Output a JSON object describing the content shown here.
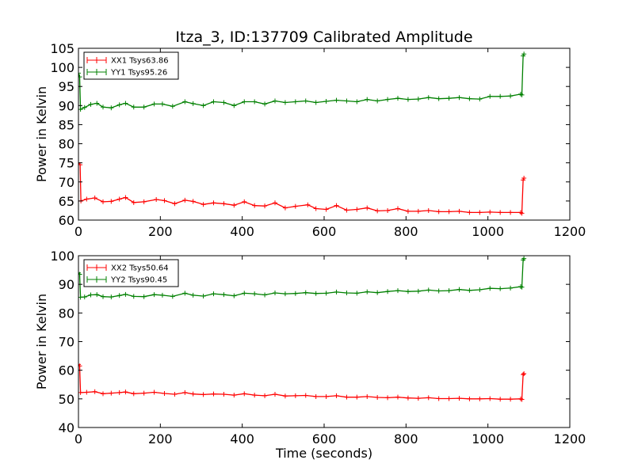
{
  "chart_data": {
    "type": "line",
    "title": "Itza_3, ID:137709 Calibrated Amplitude",
    "subplots": [
      {
        "ylabel": "Power in Kelvin",
        "xlabel": "",
        "xlim": [
          0,
          1200
        ],
        "ylim": [
          60,
          105
        ],
        "xticks": [
          0,
          200,
          400,
          600,
          800,
          1000,
          1200
        ],
        "yticks": [
          60,
          65,
          70,
          75,
          80,
          85,
          90,
          95,
          100,
          105
        ],
        "legend_position": "upper-left",
        "series": [
          {
            "name": "XX1 Tsys63.86",
            "color": "#ff0000",
            "points": [
              [
                0,
                75
              ],
              [
                4,
                74.5
              ],
              [
                6,
                65
              ],
              [
                20,
                65.5
              ],
              [
                40,
                65.8
              ],
              [
                60,
                64.8
              ],
              [
                80,
                64.9
              ],
              [
                100,
                65.5
              ],
              [
                115,
                65.9
              ],
              [
                135,
                64.6
              ],
              [
                160,
                64.8
              ],
              [
                190,
                65.4
              ],
              [
                210,
                65.1
              ],
              [
                235,
                64.3
              ],
              [
                260,
                65.2
              ],
              [
                280,
                64.9
              ],
              [
                305,
                64.1
              ],
              [
                330,
                64.5
              ],
              [
                355,
                64.3
              ],
              [
                380,
                63.9
              ],
              [
                405,
                64.8
              ],
              [
                430,
                63.8
              ],
              [
                455,
                63.7
              ],
              [
                480,
                64.5
              ],
              [
                505,
                63.2
              ],
              [
                530,
                63.6
              ],
              [
                560,
                64.0
              ],
              [
                580,
                63.0
              ],
              [
                605,
                62.8
              ],
              [
                630,
                63.8
              ],
              [
                655,
                62.6
              ],
              [
                680,
                62.8
              ],
              [
                705,
                63.2
              ],
              [
                730,
                62.4
              ],
              [
                755,
                62.5
              ],
              [
                780,
                63.0
              ],
              [
                805,
                62.3
              ],
              [
                830,
                62.3
              ],
              [
                855,
                62.5
              ],
              [
                880,
                62.2
              ],
              [
                905,
                62.2
              ],
              [
                930,
                62.3
              ],
              [
                955,
                62.0
              ],
              [
                980,
                62.0
              ],
              [
                1005,
                62.1
              ],
              [
                1030,
                62.0
              ],
              [
                1055,
                62.0
              ],
              [
                1080,
                62.0
              ],
              [
                1083,
                61.8
              ],
              [
                1086,
                70.5
              ],
              [
                1088,
                71.0
              ]
            ]
          },
          {
            "name": "YY1 Tsys95.26",
            "color": "#008000",
            "points": [
              [
                0,
                98.5
              ],
              [
                3,
                97.5
              ],
              [
                5,
                89
              ],
              [
                15,
                89.5
              ],
              [
                30,
                90.3
              ],
              [
                45,
                90.6
              ],
              [
                60,
                89.6
              ],
              [
                80,
                89.4
              ],
              [
                100,
                90.2
              ],
              [
                115,
                90.6
              ],
              [
                135,
                89.6
              ],
              [
                160,
                89.6
              ],
              [
                185,
                90.4
              ],
              [
                205,
                90.4
              ],
              [
                230,
                89.8
              ],
              [
                260,
                91.0
              ],
              [
                280,
                90.5
              ],
              [
                305,
                90.0
              ],
              [
                330,
                91.0
              ],
              [
                355,
                90.8
              ],
              [
                380,
                90.0
              ],
              [
                405,
                91.0
              ],
              [
                430,
                91.0
              ],
              [
                455,
                90.4
              ],
              [
                480,
                91.2
              ],
              [
                505,
                90.8
              ],
              [
                530,
                91.0
              ],
              [
                555,
                91.2
              ],
              [
                580,
                90.8
              ],
              [
                605,
                91.1
              ],
              [
                630,
                91.4
              ],
              [
                655,
                91.2
              ],
              [
                680,
                91.0
              ],
              [
                705,
                91.6
              ],
              [
                730,
                91.2
              ],
              [
                755,
                91.6
              ],
              [
                780,
                91.9
              ],
              [
                805,
                91.6
              ],
              [
                830,
                91.7
              ],
              [
                855,
                92.1
              ],
              [
                880,
                91.8
              ],
              [
                905,
                91.9
              ],
              [
                930,
                92.1
              ],
              [
                955,
                91.8
              ],
              [
                980,
                91.7
              ],
              [
                1005,
                92.4
              ],
              [
                1030,
                92.4
              ],
              [
                1055,
                92.5
              ],
              [
                1080,
                93.0
              ],
              [
                1083,
                92.8
              ],
              [
                1086,
                103.0
              ],
              [
                1088,
                103.5
              ]
            ]
          }
        ]
      },
      {
        "ylabel": "Power in Kelvin",
        "xlabel": "Time (seconds)",
        "xlim": [
          0,
          1200
        ],
        "ylim": [
          40,
          100
        ],
        "xticks": [
          0,
          200,
          400,
          600,
          800,
          1000,
          1200
        ],
        "yticks": [
          40,
          50,
          60,
          70,
          80,
          90,
          100
        ],
        "legend_position": "upper-left",
        "series": [
          {
            "name": "XX2 Tsys50.64",
            "color": "#ff0000",
            "points": [
              [
                0,
                62
              ],
              [
                3,
                61.5
              ],
              [
                5,
                52.2
              ],
              [
                20,
                52.3
              ],
              [
                40,
                52.5
              ],
              [
                60,
                51.8
              ],
              [
                80,
                52.0
              ],
              [
                100,
                52.2
              ],
              [
                115,
                52.4
              ],
              [
                135,
                51.8
              ],
              [
                160,
                52.0
              ],
              [
                185,
                52.3
              ],
              [
                210,
                51.9
              ],
              [
                235,
                51.6
              ],
              [
                260,
                52.2
              ],
              [
                280,
                51.7
              ],
              [
                305,
                51.5
              ],
              [
                330,
                51.7
              ],
              [
                355,
                51.6
              ],
              [
                380,
                51.3
              ],
              [
                405,
                51.8
              ],
              [
                430,
                51.3
              ],
              [
                455,
                51.1
              ],
              [
                480,
                51.6
              ],
              [
                505,
                51.0
              ],
              [
                530,
                51.1
              ],
              [
                555,
                51.2
              ],
              [
                580,
                50.8
              ],
              [
                605,
                50.8
              ],
              [
                630,
                51.1
              ],
              [
                655,
                50.6
              ],
              [
                680,
                50.6
              ],
              [
                705,
                50.8
              ],
              [
                730,
                50.5
              ],
              [
                755,
                50.4
              ],
              [
                780,
                50.6
              ],
              [
                805,
                50.3
              ],
              [
                830,
                50.2
              ],
              [
                855,
                50.4
              ],
              [
                880,
                50.1
              ],
              [
                905,
                50.1
              ],
              [
                930,
                50.2
              ],
              [
                955,
                50.0
              ],
              [
                980,
                50.0
              ],
              [
                1005,
                50.1
              ],
              [
                1030,
                49.9
              ],
              [
                1055,
                49.9
              ],
              [
                1080,
                50.0
              ],
              [
                1083,
                49.8
              ],
              [
                1086,
                58.5
              ],
              [
                1088,
                58.8
              ]
            ]
          },
          {
            "name": "YY2 Tsys90.45",
            "color": "#008000",
            "points": [
              [
                0,
                94
              ],
              [
                3,
                93.5
              ],
              [
                5,
                85.5
              ],
              [
                15,
                85.6
              ],
              [
                30,
                86.3
              ],
              [
                45,
                86.4
              ],
              [
                60,
                85.7
              ],
              [
                80,
                85.6
              ],
              [
                100,
                86.1
              ],
              [
                115,
                86.5
              ],
              [
                135,
                85.8
              ],
              [
                160,
                85.7
              ],
              [
                185,
                86.4
              ],
              [
                205,
                86.2
              ],
              [
                230,
                85.8
              ],
              [
                260,
                86.9
              ],
              [
                280,
                86.2
              ],
              [
                305,
                85.9
              ],
              [
                330,
                86.7
              ],
              [
                355,
                86.4
              ],
              [
                380,
                86.0
              ],
              [
                405,
                86.9
              ],
              [
                430,
                86.7
              ],
              [
                455,
                86.3
              ],
              [
                480,
                87.0
              ],
              [
                505,
                86.7
              ],
              [
                530,
                86.8
              ],
              [
                555,
                87.1
              ],
              [
                580,
                86.8
              ],
              [
                605,
                86.9
              ],
              [
                630,
                87.3
              ],
              [
                655,
                87.0
              ],
              [
                680,
                86.9
              ],
              [
                705,
                87.4
              ],
              [
                730,
                87.1
              ],
              [
                755,
                87.5
              ],
              [
                780,
                87.8
              ],
              [
                805,
                87.5
              ],
              [
                830,
                87.6
              ],
              [
                855,
                88.0
              ],
              [
                880,
                87.7
              ],
              [
                905,
                87.8
              ],
              [
                930,
                88.2
              ],
              [
                955,
                87.9
              ],
              [
                980,
                88.1
              ],
              [
                1005,
                88.6
              ],
              [
                1030,
                88.5
              ],
              [
                1055,
                88.7
              ],
              [
                1080,
                89.2
              ],
              [
                1083,
                89.0
              ],
              [
                1086,
                98.5
              ],
              [
                1088,
                99.0
              ]
            ]
          }
        ]
      }
    ]
  }
}
